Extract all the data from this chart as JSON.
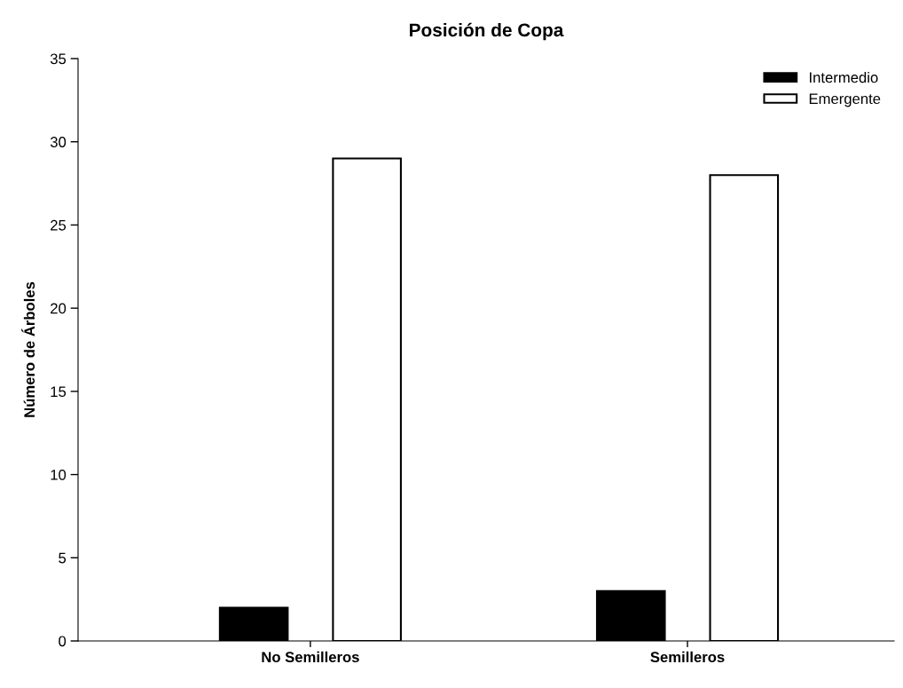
{
  "chart_data": {
    "type": "bar",
    "title": "Posición de Copa",
    "ylabel": "Número de Árboles",
    "categories": [
      "No Semilleros",
      "Semilleros"
    ],
    "series": [
      {
        "name": "Intermedio",
        "color": "#000000",
        "values": [
          2,
          3
        ]
      },
      {
        "name": "Emergente",
        "color": "#ffffff",
        "values": [
          29,
          28
        ]
      }
    ],
    "ylim": [
      0,
      35
    ],
    "yticks": [
      0,
      5,
      10,
      15,
      20,
      25,
      30,
      35
    ],
    "grid": false,
    "legend": "top right"
  }
}
